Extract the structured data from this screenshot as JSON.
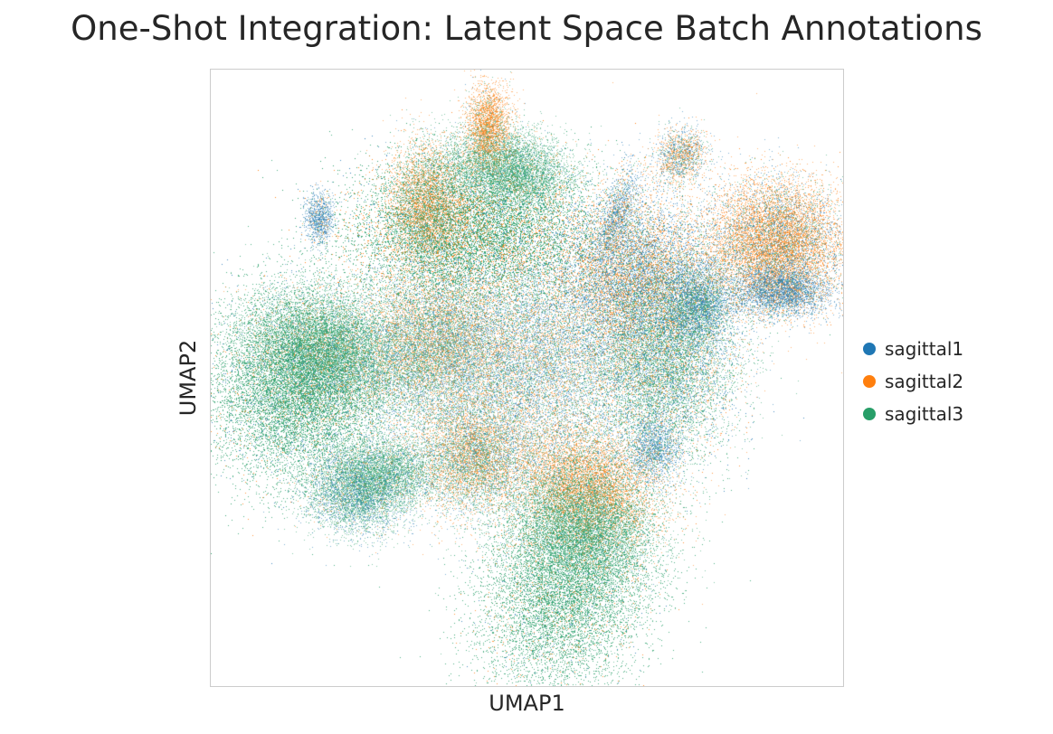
{
  "chart_data": {
    "type": "scatter",
    "title": "One-Shot Integration: Latent Space Batch Annotations",
    "xlabel": "UMAP1",
    "ylabel": "UMAP2",
    "xticks": [],
    "yticks": [],
    "grid": false,
    "legend_position": "right",
    "series": [
      {
        "name": "sagittal1",
        "color": "#1f77b4"
      },
      {
        "name": "sagittal2",
        "color": "#ff7f0e"
      },
      {
        "name": "sagittal3",
        "color": "#279e68"
      }
    ]
  }
}
